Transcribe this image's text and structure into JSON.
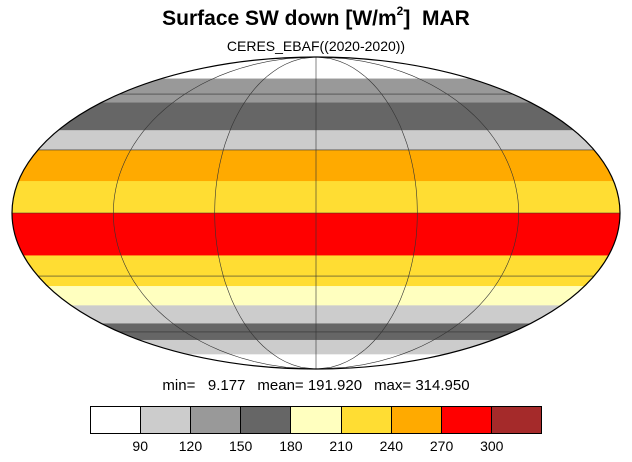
{
  "title": {
    "main": "Surface SW down [W/m",
    "sup": "2",
    "after": "]",
    "month": "MAR"
  },
  "subtitle": "CERES_EBAF((2020-2020))",
  "stats": {
    "min": "min=   9.177",
    "mean": "mean= 191.920",
    "max": "max= 314.950"
  },
  "colorbar": {
    "colors": [
      "#ffffff",
      "#cccccc",
      "#999999",
      "#666666",
      "#ffffbf",
      "#ffdd33",
      "#ffaa00",
      "#ff0000",
      "#a52a2a"
    ],
    "labels": [
      "90",
      "120",
      "150",
      "180",
      "210",
      "240",
      "270",
      "300"
    ]
  },
  "map_data": {
    "projection": "Mollweide",
    "gridlines": true,
    "bands": [
      {
        "lat": [
          70,
          90
        ],
        "level": 0
      },
      {
        "lat": [
          55,
          70
        ],
        "level": 2
      },
      {
        "lat": [
          40,
          55
        ],
        "level": 3
      },
      {
        "lat": [
          30,
          40
        ],
        "level": 1
      },
      {
        "lat": [
          15,
          30
        ],
        "level": 6
      },
      {
        "lat": [
          0,
          15
        ],
        "level": 5
      },
      {
        "lat": [
          -20,
          0
        ],
        "level": 7
      },
      {
        "lat": [
          -35,
          -20
        ],
        "level": 5
      },
      {
        "lat": [
          -45,
          -35
        ],
        "level": 4
      },
      {
        "lat": [
          -55,
          -45
        ],
        "level": 1
      },
      {
        "lat": [
          -65,
          -55
        ],
        "level": 3
      },
      {
        "lat": [
          -75,
          -65
        ],
        "level": 1
      },
      {
        "lat": [
          -90,
          -75
        ],
        "level": 0
      }
    ]
  }
}
